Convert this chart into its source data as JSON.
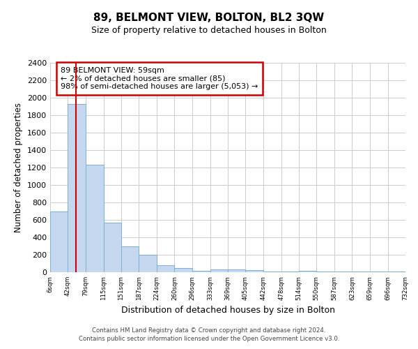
{
  "title": "89, BELMONT VIEW, BOLTON, BL2 3QW",
  "subtitle": "Size of property relative to detached houses in Bolton",
  "xlabel": "Distribution of detached houses by size in Bolton",
  "ylabel": "Number of detached properties",
  "bin_edges": [
    6,
    42,
    79,
    115,
    151,
    187,
    224,
    260,
    296,
    333,
    369,
    405,
    442,
    478,
    514,
    550,
    587,
    623,
    659,
    696,
    732
  ],
  "bin_heights": [
    700,
    1930,
    1230,
    570,
    300,
    200,
    80,
    45,
    20,
    35,
    35,
    25,
    5,
    5,
    15,
    5,
    5,
    5,
    5,
    5
  ],
  "bar_color": "#c5d8ef",
  "bar_edge_color": "#7bafd4",
  "property_line_x": 59,
  "property_line_color": "#cc0000",
  "ylim": [
    0,
    2400
  ],
  "yticks": [
    0,
    200,
    400,
    600,
    800,
    1000,
    1200,
    1400,
    1600,
    1800,
    2000,
    2200,
    2400
  ],
  "tick_labels": [
    "6sqm",
    "42sqm",
    "79sqm",
    "115sqm",
    "151sqm",
    "187sqm",
    "224sqm",
    "260sqm",
    "296sqm",
    "333sqm",
    "369sqm",
    "405sqm",
    "442sqm",
    "478sqm",
    "514sqm",
    "550sqm",
    "587sqm",
    "623sqm",
    "659sqm",
    "696sqm",
    "732sqm"
  ],
  "annotation_title": "89 BELMONT VIEW: 59sqm",
  "annotation_line1": "← 2% of detached houses are smaller (85)",
  "annotation_line2": "98% of semi-detached houses are larger (5,053) →",
  "footer1": "Contains HM Land Registry data © Crown copyright and database right 2024.",
  "footer2": "Contains public sector information licensed under the Open Government Licence v3.0.",
  "background_color": "#ffffff",
  "grid_color": "#cccccc"
}
